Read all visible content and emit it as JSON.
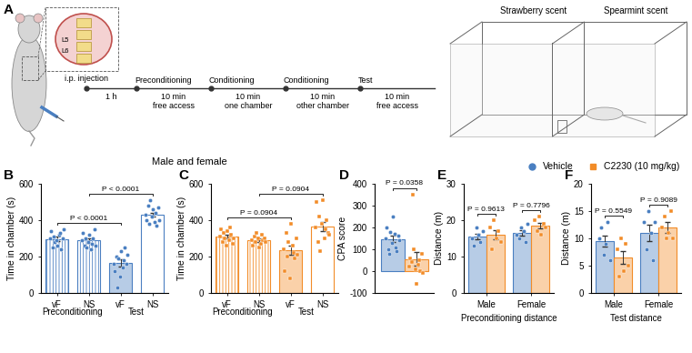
{
  "diagram": {
    "panel": "A",
    "injection": "i.p. injection",
    "vertebrae": [
      "L5",
      "L6"
    ],
    "first_interval": "1 h",
    "stages": [
      {
        "name": "Preconditioning",
        "detail": "10 min\nfree access"
      },
      {
        "name": "Conditioning",
        "detail": "10 min\none chamber"
      },
      {
        "name": "Conditioning",
        "detail": "10 min\nother chamber"
      },
      {
        "name": "Test",
        "detail": "10 min\nfree access"
      }
    ],
    "chambers": [
      "Strawberry scent",
      "Spearmint scent"
    ]
  },
  "group_title": "Male and female",
  "legend": "upper right",
  "legend_entries": [
    {
      "name": "Vehicle",
      "color": "#4a7fc1",
      "marker": "circle"
    },
    {
      "name": "C2230 (10 mg/kg)",
      "color": "#f28c28",
      "marker": "square"
    }
  ],
  "chart_data": [
    {
      "panel": "B",
      "type": "bar",
      "y_label": "Time in chamber (s)",
      "categories": [
        "vF",
        "NS",
        "vF",
        "NS"
      ],
      "group_labels": [
        "Preconditioning",
        "Test"
      ],
      "ylim": [
        0,
        600
      ],
      "yticks": [
        0,
        200,
        400,
        600
      ],
      "series": [
        {
          "color": "#4a7fc1",
          "marker": "circle",
          "values": [
            297,
            288,
            163,
            429
          ],
          "errors": [
            12,
            12,
            20,
            12
          ],
          "points": [
            [
              300,
              340,
              250,
              310,
              280,
              290,
              260,
              320,
              330,
              240,
              300,
              350
            ],
            [
              290,
              330,
              260,
              300,
              250,
              280,
              320,
              240,
              270,
              300,
              350,
              260
            ],
            [
              160,
              120,
              200,
              30,
              190,
              90,
              230,
              140,
              180,
              250,
              160,
              210
            ],
            [
              430,
              400,
              480,
              380,
              510,
              420,
              460,
              390,
              440,
              370,
              470,
              400
            ]
          ]
        }
      ],
      "comparisons": [
        {
          "from": [
            0,
            0
          ],
          "to": [
            2,
            0
          ],
          "label": "P < 0.0001"
        },
        {
          "from": [
            1,
            0
          ],
          "to": [
            3,
            0
          ],
          "label": "P < 0.0001"
        }
      ]
    },
    {
      "panel": "C",
      "type": "bar",
      "y_label": "Time in chamber (s)",
      "categories": [
        "vF",
        "NS",
        "vF",
        "NS"
      ],
      "group_labels": [
        "Preconditioning",
        "Test"
      ],
      "ylim": [
        0,
        600
      ],
      "yticks": [
        0,
        200,
        400,
        600
      ],
      "series": [
        {
          "color": "#f28c28",
          "marker": "square",
          "values": [
            309,
            290,
            234,
            365
          ],
          "errors": [
            10,
            8,
            25,
            25
          ],
          "points": [
            [
              310,
              350,
              280,
              330,
              300,
              260,
              340,
              290,
              360,
              320,
              270,
              300
            ],
            [
              290,
              260,
              310,
              280,
              330,
              300,
              250,
              270,
              320,
              290,
              300,
              280
            ],
            [
              240,
              120,
              330,
              200,
              280,
              80,
              380,
              260,
              220,
              190,
              300,
              210
            ],
            [
              360,
              500,
              280,
              420,
              230,
              380,
              510,
              300,
              350,
              400,
              330,
              320
            ]
          ]
        }
      ],
      "comparisons": [
        {
          "from": [
            0,
            0
          ],
          "to": [
            2,
            0
          ],
          "label": "P = 0.0904"
        },
        {
          "from": [
            1,
            0
          ],
          "to": [
            3,
            0
          ],
          "label": "P = 0.0904"
        }
      ]
    },
    {
      "panel": "D",
      "type": "bar",
      "y_label": "CPA score",
      "tick_labels": "y",
      "categories": [
        null
      ],
      "ylim": [
        -100,
        400
      ],
      "yticks": [
        -100,
        0,
        100,
        200,
        300,
        400
      ],
      "series": [
        {
          "color": "#4a7fc1",
          "marker": "circle",
          "values": [
            146
          ],
          "errors": [
            15
          ],
          "points": [
            [
              150,
              200,
              100,
              80,
              180,
              130,
              250,
              170,
              110,
              90,
              160,
              140
            ]
          ]
        },
        {
          "color": "#f28c28",
          "marker": "square",
          "values": [
            56
          ],
          "errors": [
            30
          ],
          "points": [
            [
              20,
              60,
              40,
              350,
              100,
              10,
              -60,
              30,
              50,
              0,
              80,
              -10
            ]
          ]
        }
      ],
      "comparisons": [
        {
          "from": [
            0,
            0
          ],
          "to": [
            0,
            1
          ],
          "label": "P = 0.0358"
        }
      ]
    },
    {
      "panel": "E",
      "type": "bar",
      "y_label": "Distance (m)",
      "x_label": "Preconditioning distance",
      "categories": [
        "Male",
        "Female"
      ],
      "ylim": [
        0,
        30
      ],
      "yticks": [
        0,
        10,
        20,
        30
      ],
      "series": [
        {
          "color": "#4a7fc1",
          "marker": "circle",
          "values": [
            15.5,
            16.5
          ],
          "errors": [
            0.8,
            0.8
          ],
          "points": [
            [
              15,
              13,
              18,
              16,
              14,
              17
            ],
            [
              16,
              15,
              18,
              17,
              14,
              19
            ]
          ]
        },
        {
          "color": "#f28c28",
          "marker": "square",
          "values": [
            16,
            18.5
          ],
          "errors": [
            1.3,
            0.8
          ],
          "points": [
            [
              18,
              12,
              20,
              15,
              17,
              14
            ],
            [
              20,
              17,
              21,
              16,
              19,
              18
            ]
          ]
        }
      ],
      "comparisons": [
        {
          "from": [
            0,
            0
          ],
          "to": [
            0,
            1
          ],
          "label": "P = 0.9613"
        },
        {
          "from": [
            1,
            0
          ],
          "to": [
            1,
            1
          ],
          "label": "P = 0.7796"
        }
      ]
    },
    {
      "panel": "F",
      "type": "bar",
      "y_label": "Distance (m)",
      "x_label": "Test distance",
      "categories": [
        "Male",
        "Female"
      ],
      "ylim": [
        0,
        20
      ],
      "yticks": [
        0,
        5,
        10,
        15,
        20
      ],
      "series": [
        {
          "color": "#4a7fc1",
          "marker": "circle",
          "values": [
            9.5,
            11
          ],
          "errors": [
            1.0,
            1.5
          ],
          "points": [
            [
              10,
              12,
              7,
              9,
              13,
              6
            ],
            [
              13,
              8,
              15,
              11,
              6,
              13
            ]
          ]
        },
        {
          "color": "#f28c28",
          "marker": "square",
          "values": [
            6.5,
            12
          ],
          "errors": [
            1.2,
            1.0
          ],
          "points": [
            [
              8,
              3,
              10,
              4,
              9,
              5
            ],
            [
              12,
              14,
              10,
              11,
              15,
              10
            ]
          ]
        }
      ],
      "comparisons": [
        {
          "from": [
            0,
            0
          ],
          "to": [
            0,
            1
          ],
          "label": "P = 0.5549"
        },
        {
          "from": [
            1,
            0
          ],
          "to": [
            1,
            1
          ],
          "label": "P = 0.9089"
        }
      ]
    }
  ]
}
